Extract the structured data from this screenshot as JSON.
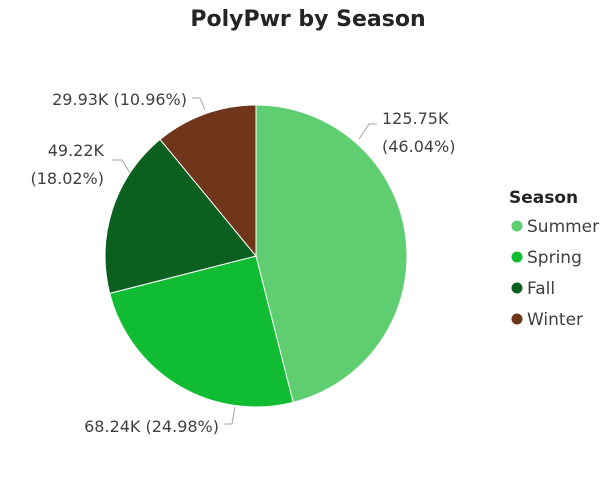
{
  "chart_data": {
    "type": "pie",
    "title": "PolyPwr by Season",
    "legend": {
      "title": "Season",
      "position": "right"
    },
    "categories": [
      "Summer",
      "Spring",
      "Fall",
      "Winter"
    ],
    "values": [
      125.75,
      68.24,
      49.22,
      29.93
    ],
    "unit": "K",
    "colors": [
      "#5ECE71",
      "#10BC31",
      "#0B5F1F",
      "#70361B"
    ],
    "data_labels": [
      {
        "value": "125.75K",
        "percent": "(46.04%)"
      },
      {
        "value": "68.24K",
        "percent": "(24.98%)"
      },
      {
        "value": "49.22K",
        "percent": "(18.02%)"
      },
      {
        "value": "29.93K",
        "percent": "(10.96%)"
      }
    ]
  }
}
